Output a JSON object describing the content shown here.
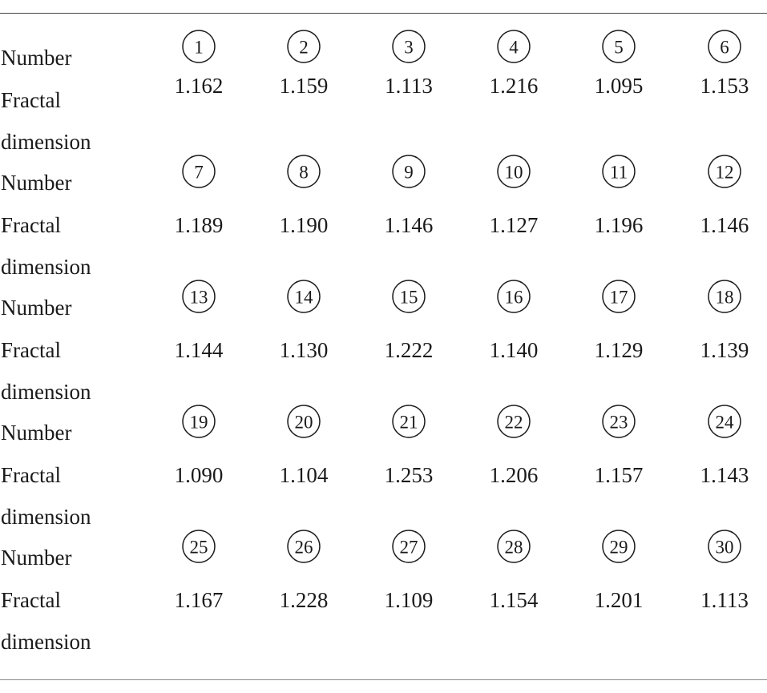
{
  "labels": {
    "number": "Number",
    "fractal_line1": "Fractal",
    "fractal_line2": "dimension"
  },
  "groups": [
    {
      "numbers": [
        "1",
        "2",
        "3",
        "4",
        "5",
        "6"
      ],
      "values": [
        "1.162",
        "1.159",
        "1.113",
        "1.216",
        "1.095",
        "1.153"
      ]
    },
    {
      "numbers": [
        "7",
        "8",
        "9",
        "10",
        "11",
        "12"
      ],
      "values": [
        "1.189",
        "1.190",
        "1.146",
        "1.127",
        "1.196",
        "1.146"
      ]
    },
    {
      "numbers": [
        "13",
        "14",
        "15",
        "16",
        "17",
        "18"
      ],
      "values": [
        "1.144",
        "1.130",
        "1.222",
        "1.140",
        "1.129",
        "1.139"
      ]
    },
    {
      "numbers": [
        "19",
        "20",
        "21",
        "22",
        "23",
        "24"
      ],
      "values": [
        "1.090",
        "1.104",
        "1.253",
        "1.206",
        "1.157",
        "1.143"
      ]
    },
    {
      "numbers": [
        "25",
        "26",
        "27",
        "28",
        "29",
        "30"
      ],
      "values": [
        "1.167",
        "1.228",
        "1.109",
        "1.154",
        "1.201",
        "1.113"
      ]
    }
  ]
}
